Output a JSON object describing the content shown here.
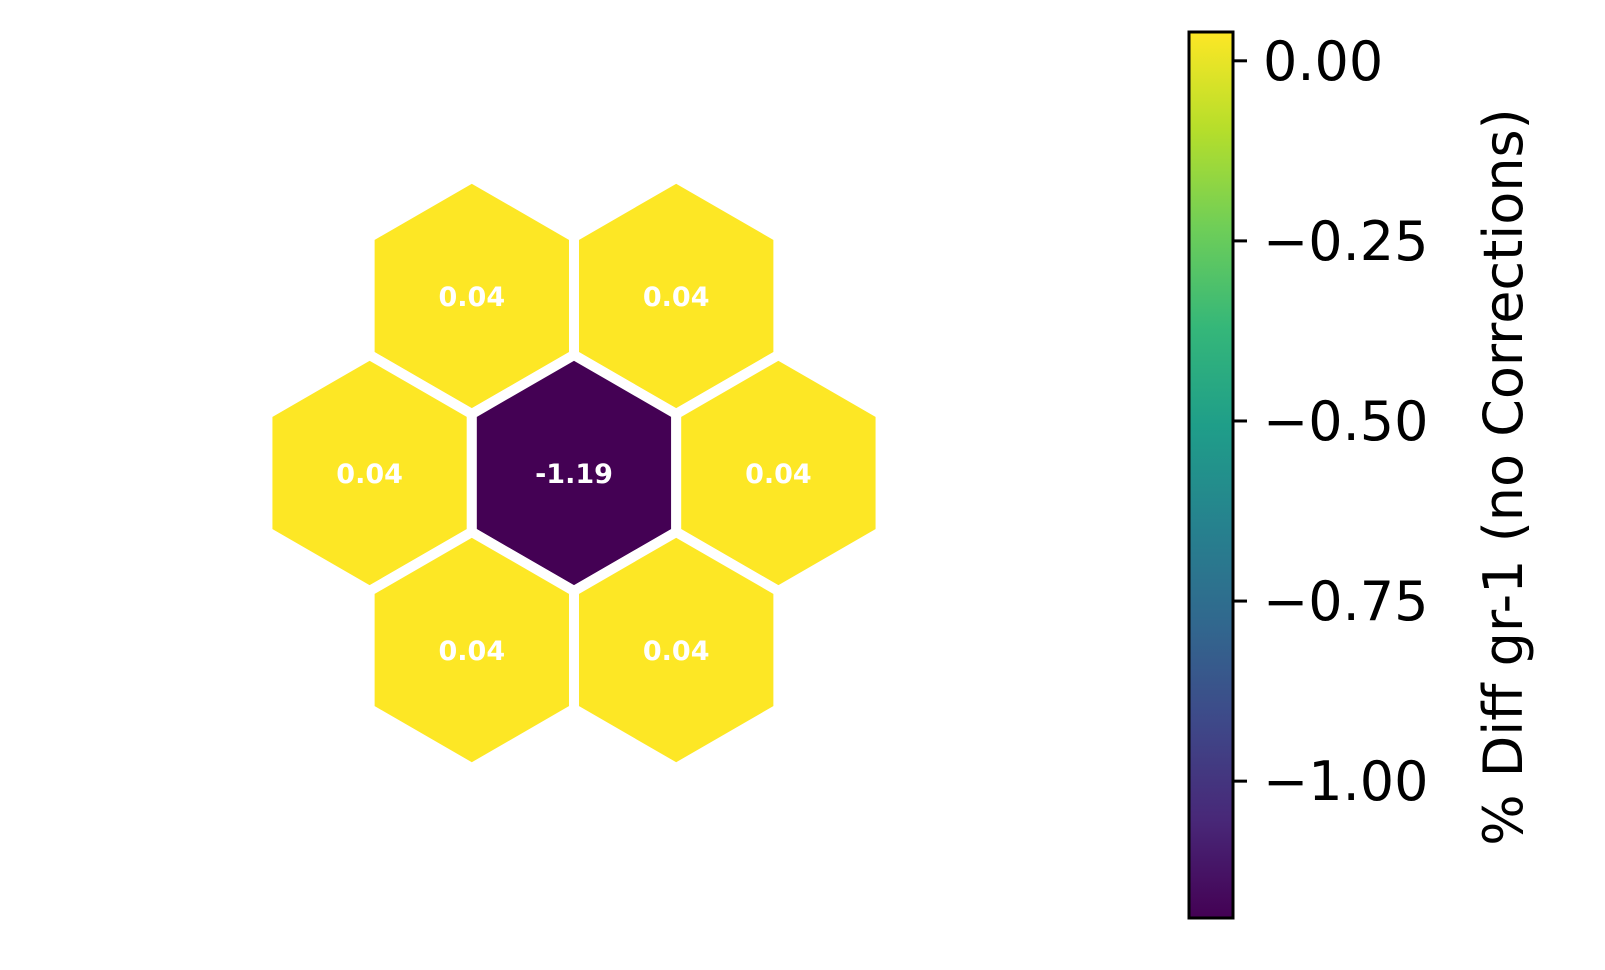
{
  "chart_data": {
    "type": "heatmap",
    "layout": "hexagonal",
    "cells": [
      {
        "row": 0,
        "col": 0,
        "value": 0.04,
        "label": "0.04"
      },
      {
        "row": 0,
        "col": 1,
        "value": 0.04,
        "label": "0.04"
      },
      {
        "row": 1,
        "col": 0,
        "value": 0.04,
        "label": "0.04"
      },
      {
        "row": 1,
        "col": 1,
        "value": -1.19,
        "label": "-1.19"
      },
      {
        "row": 1,
        "col": 2,
        "value": 0.04,
        "label": "0.04"
      },
      {
        "row": 2,
        "col": 0,
        "value": 0.04,
        "label": "0.04"
      },
      {
        "row": 2,
        "col": 1,
        "value": 0.04,
        "label": "0.04"
      }
    ],
    "colorbar": {
      "title": "% Diff gr-1 (no Corrections)",
      "range": [
        -1.19,
        0.04
      ],
      "ticks": [
        0.0,
        -0.25,
        -0.5,
        -0.75,
        -1.0
      ],
      "tick_labels": [
        "0.00",
        "−0.25",
        "−0.50",
        "−0.75",
        "−1.00"
      ],
      "colormap": "viridis",
      "colormap_stops": [
        "#440154",
        "#482878",
        "#3e4989",
        "#31688e",
        "#26828e",
        "#1f9e89",
        "#35b779",
        "#6ece58",
        "#b5de2b",
        "#fde725"
      ]
    },
    "cell_edge_color": "#ffffff",
    "label_color": "#ffffff"
  }
}
